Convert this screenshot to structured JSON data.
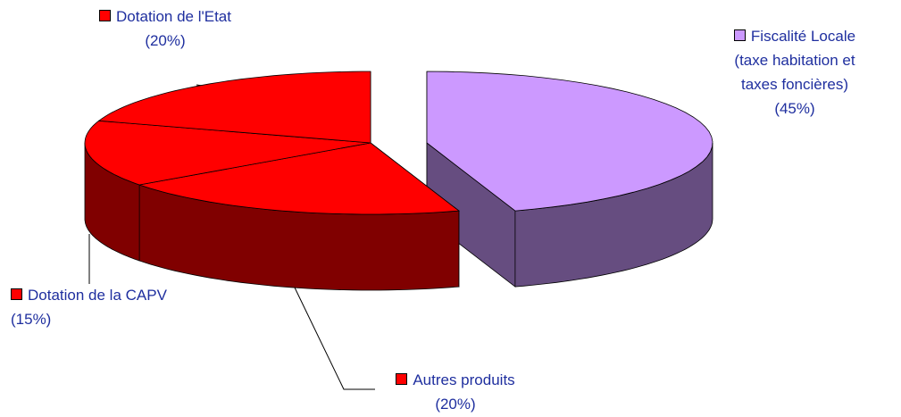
{
  "chart_data": {
    "type": "pie",
    "categories": [
      "Fiscalité Locale (taxe habitation et taxes foncières)",
      "Autres produits",
      "Dotation de la CAPV",
      "Dotation de l'Etat"
    ],
    "values": [
      45,
      20,
      15,
      20
    ],
    "value_labels": [
      "(45%)",
      "(20%)",
      "(15%)",
      "(20%)"
    ],
    "colors": [
      "#cc99ff",
      "#ff0000",
      "#ff0000",
      "#ff0000"
    ]
  }
}
